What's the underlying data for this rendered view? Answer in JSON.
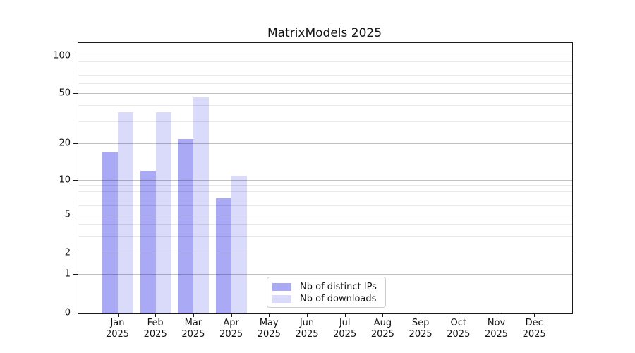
{
  "page": {
    "background": "#ffffff"
  },
  "chart_data": {
    "type": "bar",
    "title": "MatrixModels 2025",
    "categories": [
      "Jan 2025",
      "Feb 2025",
      "Mar 2025",
      "Apr 2025",
      "May 2025",
      "Jun 2025",
      "Jul 2025",
      "Aug 2025",
      "Sep 2025",
      "Oct 2025",
      "Nov 2025",
      "Dec 2025"
    ],
    "x_months": [
      "Jan",
      "Feb",
      "Mar",
      "Apr",
      "May",
      "Jun",
      "Jul",
      "Aug",
      "Sep",
      "Oct",
      "Nov",
      "Dec"
    ],
    "x_year": "2025",
    "series": [
      {
        "name": "Nb of distinct IPs",
        "color": "#a9a9f6",
        "values": [
          17,
          12,
          22,
          7,
          null,
          null,
          null,
          null,
          null,
          null,
          null,
          null
        ]
      },
      {
        "name": "Nb of downloads",
        "color": "#dadafb",
        "values": [
          36,
          36,
          47,
          11,
          null,
          null,
          null,
          null,
          null,
          null,
          null,
          null
        ]
      }
    ],
    "y_axis": {
      "scale": "log-like",
      "major_ticks": [
        0,
        1,
        2,
        5,
        10,
        20,
        50,
        100
      ],
      "minor_ticks": [
        3,
        4,
        6,
        7,
        8,
        9,
        30,
        40,
        60,
        70,
        80,
        90
      ],
      "range": [
        0,
        130
      ]
    },
    "grid": true,
    "legend": {
      "position": "inside-bottom-center",
      "items": [
        "Nb of distinct IPs",
        "Nb of downloads"
      ]
    },
    "colors": {
      "major_grid": "#bfbfbf",
      "minor_grid": "#e8e8e8",
      "spine": "#1a1a1a",
      "text": "#121212"
    }
  }
}
